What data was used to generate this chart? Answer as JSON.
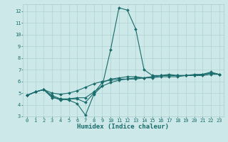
{
  "title": "",
  "xlabel": "Humidex (Indice chaleur)",
  "ylabel": "",
  "bg_color": "#cce8e8",
  "grid_color": "#aacccc",
  "line_color": "#1a6b6b",
  "xlim": [
    -0.5,
    23.5
  ],
  "ylim": [
    3,
    12.6
  ],
  "xticks": [
    0,
    1,
    2,
    3,
    4,
    5,
    6,
    7,
    8,
    9,
    10,
    11,
    12,
    13,
    14,
    15,
    16,
    17,
    18,
    19,
    20,
    21,
    22,
    23
  ],
  "yticks": [
    3,
    4,
    5,
    6,
    7,
    8,
    9,
    10,
    11,
    12
  ],
  "line1_x": [
    0,
    1,
    2,
    3,
    4,
    5,
    6,
    7,
    8,
    9,
    10,
    11,
    12,
    13,
    14,
    15,
    16,
    17,
    18,
    19,
    20,
    21,
    22,
    23
  ],
  "line1_y": [
    4.8,
    5.1,
    5.3,
    4.6,
    4.5,
    4.4,
    4.1,
    3.1,
    4.9,
    5.6,
    8.7,
    12.3,
    12.1,
    10.5,
    7.0,
    6.5,
    6.5,
    6.6,
    6.5,
    6.5,
    6.5,
    6.6,
    6.8,
    6.6
  ],
  "line2_x": [
    0,
    1,
    2,
    3,
    4,
    5,
    6,
    7,
    8,
    9,
    10,
    11,
    12,
    13,
    14,
    15,
    16,
    17,
    18,
    19,
    20,
    21,
    22,
    23
  ],
  "line2_y": [
    4.8,
    5.1,
    5.3,
    4.7,
    4.4,
    4.5,
    4.5,
    4.2,
    5.0,
    5.9,
    6.2,
    6.3,
    6.4,
    6.4,
    6.3,
    6.4,
    6.5,
    6.5,
    6.5,
    6.5,
    6.6,
    6.6,
    6.7,
    6.6
  ],
  "line3_x": [
    0,
    1,
    2,
    3,
    4,
    5,
    6,
    7,
    8,
    9,
    10,
    11,
    12,
    13,
    14,
    15,
    16,
    17,
    18,
    19,
    20,
    21,
    22,
    23
  ],
  "line3_y": [
    4.8,
    5.1,
    5.3,
    4.8,
    4.5,
    4.5,
    4.6,
    4.6,
    5.1,
    5.6,
    5.9,
    6.1,
    6.2,
    6.3,
    6.3,
    6.4,
    6.5,
    6.5,
    6.5,
    6.5,
    6.5,
    6.5,
    6.6,
    6.6
  ],
  "line4_x": [
    0,
    1,
    2,
    3,
    4,
    5,
    6,
    7,
    8,
    9,
    10,
    11,
    12,
    13,
    14,
    15,
    16,
    17,
    18,
    19,
    20,
    21,
    22,
    23
  ],
  "line4_y": [
    4.8,
    5.1,
    5.3,
    5.0,
    4.9,
    5.0,
    5.2,
    5.5,
    5.8,
    6.0,
    6.1,
    6.2,
    6.2,
    6.2,
    6.3,
    6.3,
    6.4,
    6.4,
    6.4,
    6.5,
    6.5,
    6.6,
    6.7,
    6.6
  ],
  "tick_fontsize": 5.0,
  "xlabel_fontsize": 6.5,
  "marker_size": 2.0,
  "linewidth": 0.8
}
